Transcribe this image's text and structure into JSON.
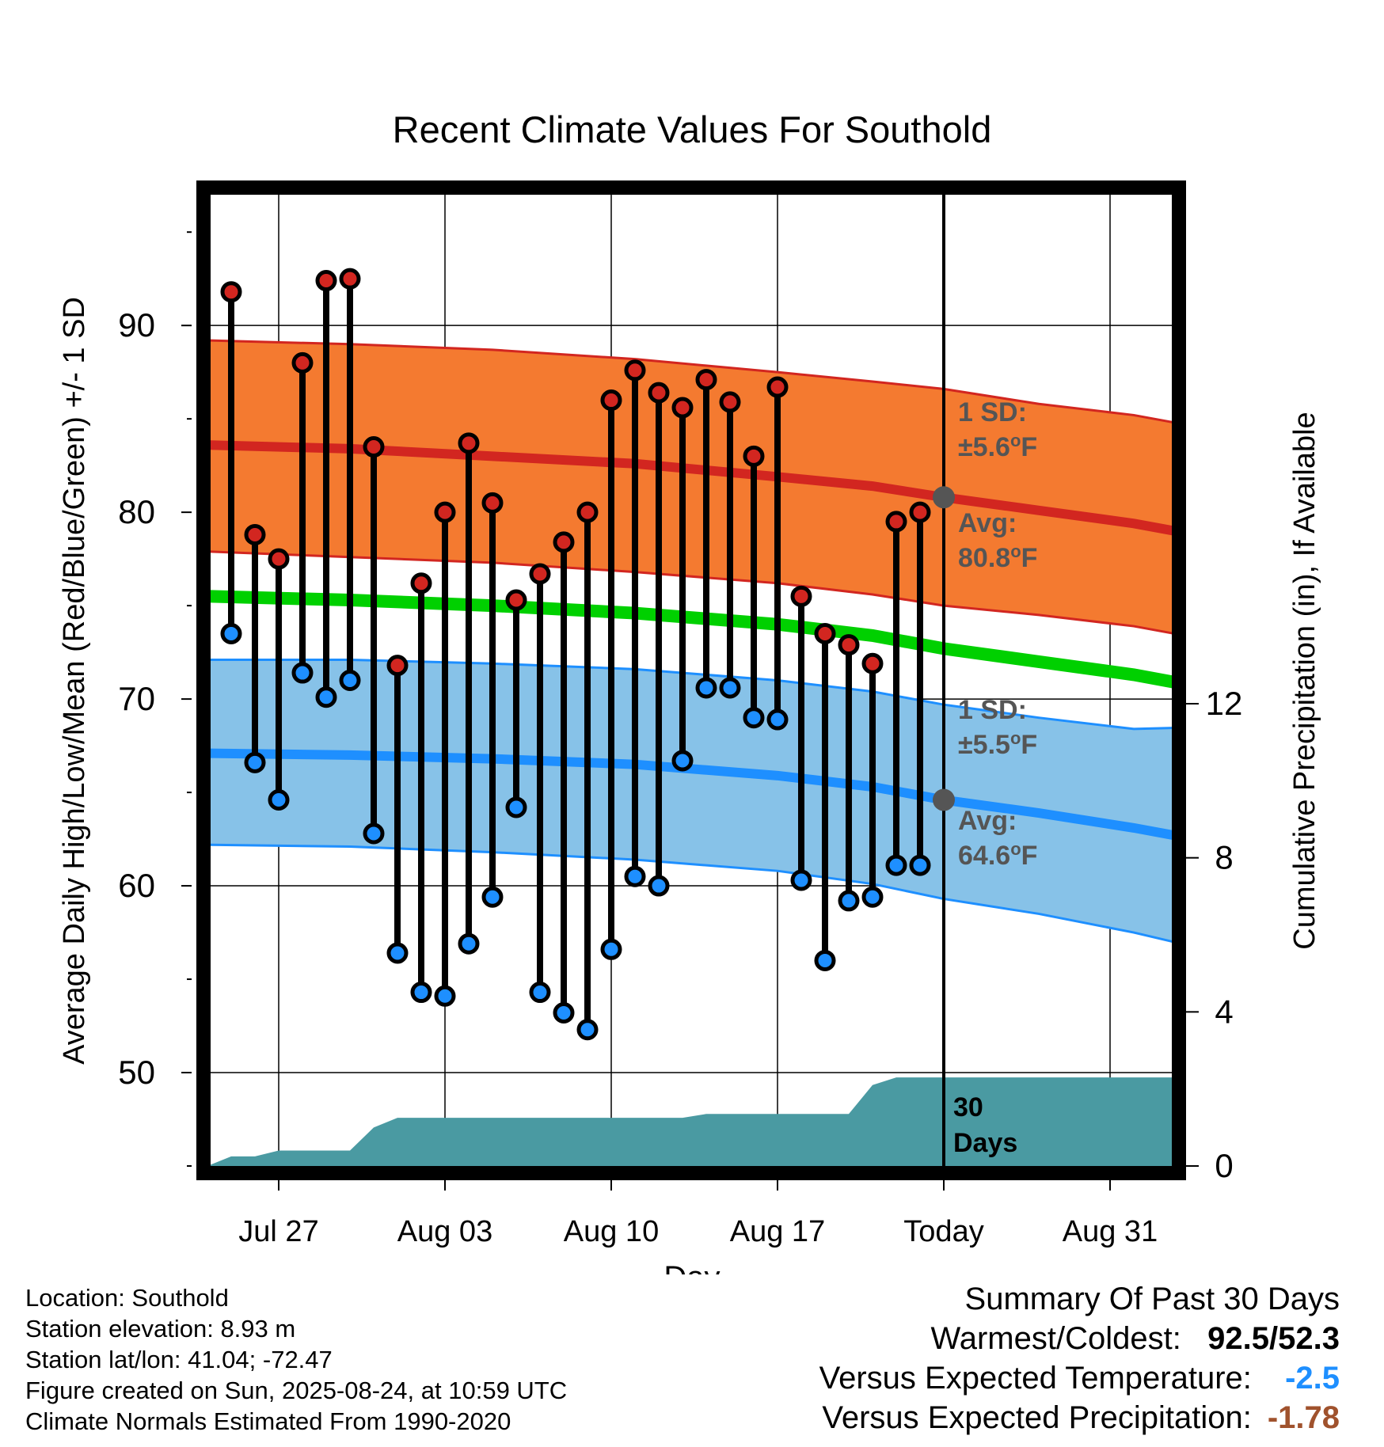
{
  "chart_data": {
    "type": "line",
    "title": "Recent Climate Values For Southold",
    "xlabel": "Day",
    "ylabel": "Average Daily High/Low/Mean (Red/Blue/Green) +/- 1 SD",
    "y2label": "Cumulative Precipitation (in), If Available",
    "ylim": [
      45,
      97
    ],
    "yticks": [
      50,
      60,
      70,
      80,
      90
    ],
    "y2lim": [
      0,
      18
    ],
    "y2ticks": [
      0,
      4,
      8,
      12
    ],
    "xlim": [
      0,
      42
    ],
    "x_ticks": [
      {
        "x": 3,
        "label": "Jul 27"
      },
      {
        "x": 10,
        "label": "Aug 03"
      },
      {
        "x": 17,
        "label": "Aug 10"
      },
      {
        "x": 24,
        "label": "Aug 17"
      },
      {
        "x": 31,
        "label": "Today"
      },
      {
        "x": 38,
        "label": "Aug 31"
      }
    ],
    "today_x": 31,
    "days": [
      1,
      2,
      3,
      4,
      5,
      6,
      7,
      8,
      9,
      10,
      11,
      12,
      13,
      14,
      15,
      16,
      17,
      18,
      19,
      20,
      21,
      22,
      23,
      24,
      25,
      26,
      27,
      28,
      29,
      30
    ],
    "highs": [
      91.8,
      78.8,
      77.5,
      88.0,
      92.4,
      92.5,
      83.5,
      71.8,
      76.2,
      80.0,
      83.7,
      80.5,
      75.3,
      76.7,
      78.4,
      80.0,
      86.0,
      87.6,
      86.4,
      85.6,
      87.1,
      85.9,
      83.0,
      86.7,
      75.5,
      73.5,
      72.9,
      71.9,
      79.5,
      80.0
    ],
    "lows": [
      73.5,
      66.6,
      64.6,
      71.4,
      70.1,
      71.0,
      62.8,
      56.4,
      54.3,
      54.1,
      56.9,
      59.4,
      64.2,
      54.3,
      53.2,
      52.3,
      56.6,
      60.5,
      60.0,
      66.7,
      70.6,
      70.6,
      69.0,
      68.9,
      60.3,
      56.0,
      59.2,
      59.4,
      61.1,
      61.1
    ],
    "normals": {
      "x": [
        0,
        6,
        12,
        18,
        24,
        28,
        31,
        35,
        39,
        42
      ],
      "high_upper": [
        89.2,
        89.0,
        88.7,
        88.2,
        87.5,
        87.0,
        86.6,
        85.8,
        85.2,
        84.5
      ],
      "high_mean": [
        83.6,
        83.4,
        83.0,
        82.6,
        81.9,
        81.4,
        80.8,
        80.1,
        79.4,
        78.7
      ],
      "high_lower": [
        77.9,
        77.6,
        77.3,
        76.8,
        76.2,
        75.6,
        75.0,
        74.5,
        73.9,
        73.2
      ],
      "mean": [
        75.5,
        75.3,
        75.0,
        74.6,
        74.0,
        73.4,
        72.7,
        72.0,
        71.3,
        70.6
      ],
      "low_upper": [
        72.1,
        72.1,
        71.9,
        71.6,
        71.0,
        70.4,
        69.7,
        69.0,
        68.4,
        68.5
      ],
      "low_mean": [
        67.1,
        67.0,
        66.8,
        66.5,
        65.9,
        65.3,
        64.6,
        63.9,
        63.1,
        62.4
      ],
      "low_lower": [
        62.2,
        62.1,
        61.8,
        61.4,
        60.8,
        60.1,
        59.3,
        58.5,
        57.5,
        56.6
      ]
    },
    "precip": {
      "x": [
        0,
        1,
        2,
        3,
        4,
        5,
        6,
        7,
        8,
        9,
        15,
        20,
        21,
        27,
        28,
        29,
        31,
        42
      ],
      "y": [
        0,
        0.25,
        0.25,
        0.4,
        0.4,
        0.4,
        0.4,
        1.0,
        1.25,
        1.25,
        1.25,
        1.25,
        1.35,
        1.35,
        2.1,
        2.3,
        2.3,
        2.3
      ]
    },
    "annotations": {
      "high_sd_label": "1 SD:",
      "high_sd_value": "±5.6",
      "high_avg_label": "Avg:",
      "high_avg_value": "80.8",
      "low_sd_label": "1 SD:",
      "low_sd_value": "±5.5",
      "low_avg_label": "Avg:",
      "low_avg_value": "64.6",
      "unit": "F",
      "degree": "o",
      "period_line1": "30",
      "period_line2": "Days"
    },
    "colors": {
      "high_band": "#f47a30",
      "high_line": "#d22620",
      "low_band": "#87c2e8",
      "low_line": "#1e8fff",
      "mean_line": "#00d000",
      "precip": "#4a9aa2",
      "high_dot": "#d22620",
      "low_dot": "#1e8fff",
      "annotation": "#555555"
    }
  },
  "footer": {
    "location": "Location: Southold",
    "elevation": "Station elevation: 8.93 m",
    "latlon": "Station lat/lon: 41.04; -72.47",
    "created": "Figure created on Sun, 2025-08-24, at 10:59 UTC",
    "normals": "Climate Normals Estimated From 1990-2020"
  },
  "summary": {
    "title": "Summary Of Past 30 Days",
    "warmest_label": "Warmest/Coldest:",
    "warmest_value": "92.5",
    "separator": "/",
    "coldest_value": "52.3",
    "temp_label": "Versus Expected Temperature:",
    "temp_value": "-2.5",
    "precip_label": "Versus Expected Precipitation:",
    "precip_value": "-1.78",
    "temp_color": "#1e8fff",
    "precip_color": "#a0522d"
  }
}
